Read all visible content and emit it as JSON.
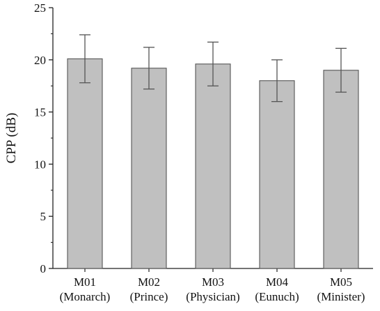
{
  "chart_data": {
    "type": "bar",
    "ylabel": "CPP (dB)",
    "xlabel": "",
    "ylim": [
      0,
      25
    ],
    "yticks": [
      0,
      5,
      10,
      15,
      20,
      25
    ],
    "minor_ticks": true,
    "grid": false,
    "categories": [
      {
        "code": "M01",
        "role": "(Monarch)"
      },
      {
        "code": "M02",
        "role": "(Prince)"
      },
      {
        "code": "M03",
        "role": "(Physician)"
      },
      {
        "code": "M04",
        "role": "(Eunuch)"
      },
      {
        "code": "M05",
        "role": "(Minister)"
      }
    ],
    "values": [
      20.1,
      19.2,
      19.6,
      18.0,
      19.0
    ],
    "error": [
      2.3,
      2.0,
      2.1,
      2.0,
      2.1
    ],
    "bar_color": "#c0c0c0",
    "bar_stroke": "#555555",
    "error_color": "#555555"
  }
}
